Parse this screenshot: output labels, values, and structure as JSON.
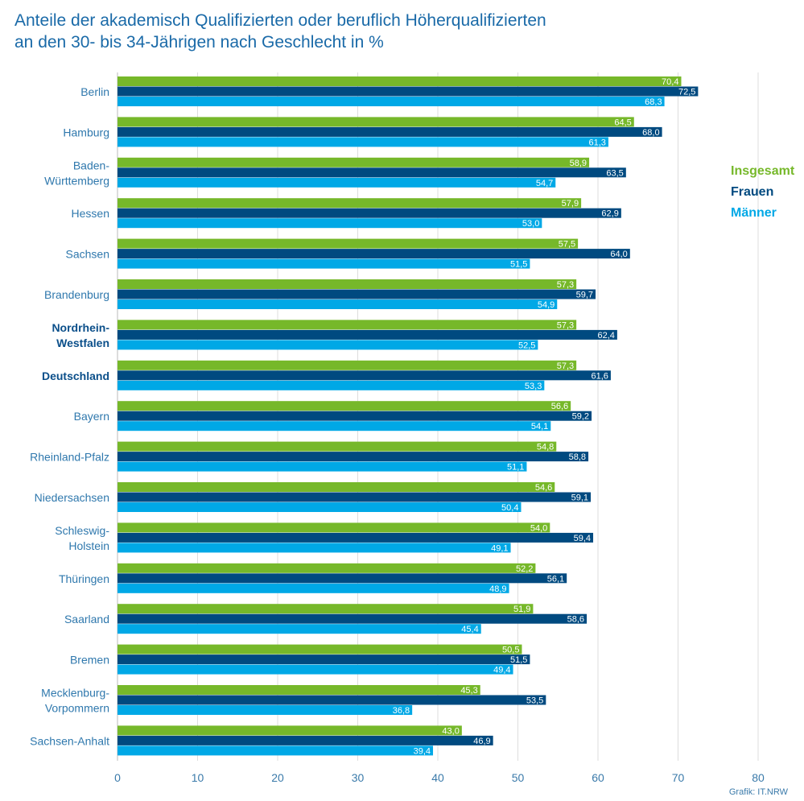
{
  "chart_data": {
    "type": "bar",
    "orientation": "horizontal",
    "title": [
      "Anteile der akademisch Qualifizierten oder beruflich Höherqualifizierten",
      "an den 30- bis 34-Jährigen nach Geschlecht in %"
    ],
    "categories": [
      "Berlin",
      "Hamburg",
      "Baden-\nWürttemberg",
      "Hessen",
      "Sachsen",
      "Brandenburg",
      "Nordrhein-\nWestfalen",
      "Deutschland",
      "Bayern",
      "Rheinland-Pfalz",
      "Niedersachsen",
      "Schleswig-\nHolstein",
      "Thüringen",
      "Saarland",
      "Bremen",
      "Mecklenburg-\nVorpommern",
      "Sachsen-Anhalt"
    ],
    "highlighted_categories": [
      "Nordrhein-\nWestfalen",
      "Deutschland"
    ],
    "series": [
      {
        "name": "Insgesamt",
        "color": "#76b82a",
        "values": [
          70.4,
          64.5,
          58.9,
          57.9,
          57.5,
          57.3,
          57.3,
          57.3,
          56.6,
          54.8,
          54.6,
          54.0,
          52.2,
          51.9,
          50.5,
          45.3,
          43.0
        ]
      },
      {
        "name": "Frauen",
        "color": "#004a80",
        "values": [
          72.5,
          68.0,
          63.5,
          62.9,
          64.0,
          59.7,
          62.4,
          61.6,
          59.2,
          58.8,
          59.1,
          59.4,
          56.1,
          58.6,
          51.5,
          53.5,
          46.9
        ]
      },
      {
        "name": "Männer",
        "color": "#00a8e6",
        "values": [
          68.3,
          61.3,
          54.7,
          53.0,
          51.5,
          54.9,
          52.5,
          53.3,
          54.1,
          51.1,
          50.4,
          49.1,
          48.9,
          45.4,
          49.4,
          36.8,
          39.4
        ]
      }
    ],
    "xlim": [
      0,
      80
    ],
    "xticks": [
      0,
      10,
      20,
      30,
      40,
      50,
      60,
      70,
      80
    ],
    "decimal_separator": ",",
    "grid": true,
    "legend_position": "right",
    "source": "Grafik: IT.NRW"
  }
}
